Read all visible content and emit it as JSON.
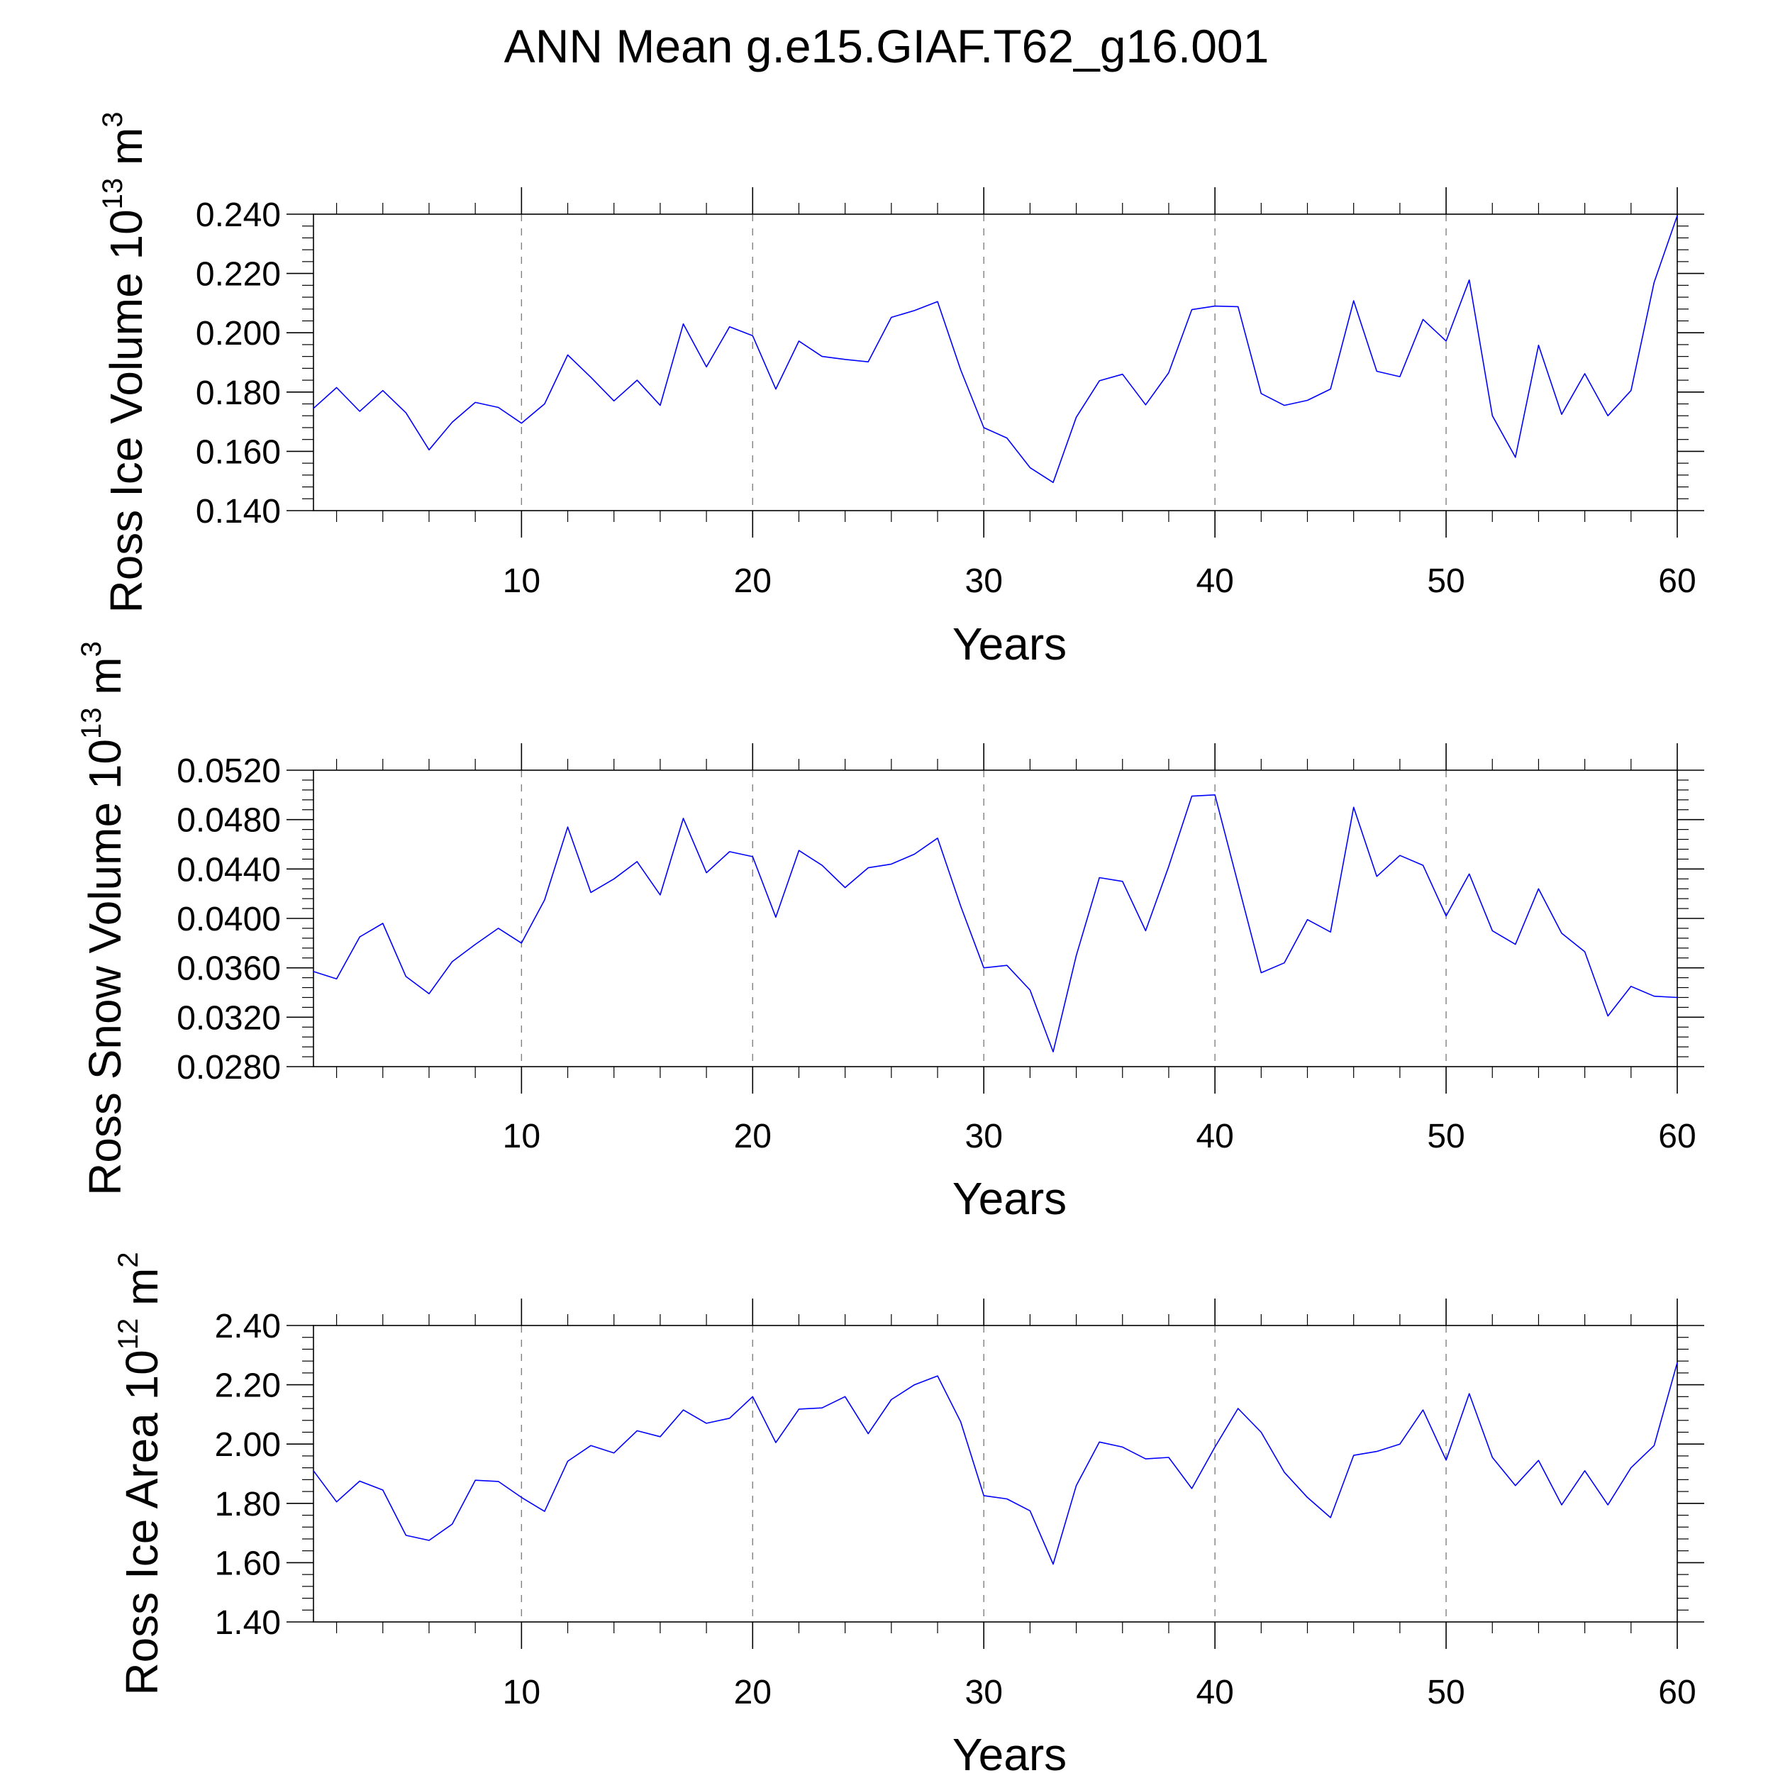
{
  "title": "ANN Mean g.e15.GIAF.T62_g16.001",
  "chart_data": [
    {
      "type": "line",
      "ylabel": {
        "text": "Ross Ice Volume 10",
        "exp": "13",
        "unit": "m",
        "unit_exp": "3"
      },
      "xlabel": "Years",
      "xlim": [
        1,
        60
      ],
      "ylim": [
        0.14,
        0.24
      ],
      "xticks": [
        10,
        20,
        30,
        40,
        50,
        60
      ],
      "yticks": [
        "0.140",
        "0.160",
        "0.180",
        "0.200",
        "0.220",
        "0.240"
      ],
      "yticks_values": [
        0.14,
        0.16,
        0.18,
        0.2,
        0.22,
        0.24
      ],
      "ygrid": false,
      "xgrid_dashed": [
        10,
        20,
        30,
        40,
        50
      ],
      "series": [
        {
          "color": "#0000ff",
          "x": [
            1,
            2,
            3,
            4,
            5,
            6,
            7,
            8,
            9,
            10,
            11,
            12,
            13,
            14,
            15,
            16,
            17,
            18,
            19,
            20,
            21,
            22,
            23,
            24,
            25,
            26,
            27,
            28,
            29,
            30,
            31,
            32,
            33,
            34,
            35,
            36,
            37,
            38,
            39,
            40,
            41,
            42,
            43,
            44,
            45,
            46,
            47,
            48,
            49,
            50,
            51,
            52,
            53,
            54,
            55,
            56,
            57,
            58,
            59,
            60
          ],
          "values": [
            0.1745,
            0.1815,
            0.1735,
            0.1805,
            0.173,
            0.1605,
            0.1698,
            0.1765,
            0.1748,
            0.1695,
            0.176,
            0.1925,
            0.185,
            0.177,
            0.184,
            0.1755,
            0.203,
            0.1885,
            0.202,
            0.199,
            0.181,
            0.1972,
            0.192,
            0.191,
            0.1902,
            0.2052,
            0.2075,
            0.2105,
            0.1875,
            0.168,
            0.1645,
            0.1545,
            0.1495,
            0.1715,
            0.1838,
            0.186,
            0.1757,
            0.1865,
            0.2078,
            0.209,
            0.2088,
            0.1795,
            0.1755,
            0.1772,
            0.181,
            0.2108,
            0.187,
            0.1852,
            0.2045,
            0.1972,
            0.2178,
            0.172,
            0.158,
            0.1958,
            0.1725,
            0.1862,
            0.172,
            0.1805,
            0.217,
            0.2395
          ]
        }
      ]
    },
    {
      "type": "line",
      "ylabel": {
        "text": "Ross Snow Volume 10",
        "exp": "13",
        "unit": "m",
        "unit_exp": "3"
      },
      "xlabel": "Years",
      "xlim": [
        1,
        60
      ],
      "ylim": [
        0.028,
        0.052
      ],
      "xticks": [
        10,
        20,
        30,
        40,
        50,
        60
      ],
      "yticks": [
        "0.0280",
        "0.0320",
        "0.0360",
        "0.0400",
        "0.0440",
        "0.0480",
        "0.0520"
      ],
      "yticks_values": [
        0.028,
        0.032,
        0.036,
        0.04,
        0.044,
        0.048,
        0.052
      ],
      "ygrid": false,
      "xgrid_dashed": [
        10,
        20,
        30,
        40,
        50
      ],
      "series": [
        {
          "color": "#0000ff",
          "x": [
            1,
            2,
            3,
            4,
            5,
            6,
            7,
            8,
            9,
            10,
            11,
            12,
            13,
            14,
            15,
            16,
            17,
            18,
            19,
            20,
            21,
            22,
            23,
            24,
            25,
            26,
            27,
            28,
            29,
            30,
            31,
            32,
            33,
            34,
            35,
            36,
            37,
            38,
            39,
            40,
            41,
            42,
            43,
            44,
            45,
            46,
            47,
            48,
            49,
            50,
            51,
            52,
            53,
            54,
            55,
            56,
            57,
            58,
            59,
            60
          ],
          "values": [
            0.0357,
            0.0351,
            0.0385,
            0.0396,
            0.0353,
            0.0339,
            0.0365,
            0.0379,
            0.0392,
            0.038,
            0.0415,
            0.0474,
            0.0421,
            0.0432,
            0.0446,
            0.0419,
            0.0481,
            0.0437,
            0.0454,
            0.045,
            0.0401,
            0.0455,
            0.0443,
            0.0425,
            0.0441,
            0.0444,
            0.0452,
            0.0465,
            0.041,
            0.036,
            0.0362,
            0.0342,
            0.0292,
            0.037,
            0.0433,
            0.043,
            0.039,
            0.0442,
            0.0499,
            0.05,
            0.0428,
            0.0356,
            0.0364,
            0.0399,
            0.0389,
            0.049,
            0.0434,
            0.0451,
            0.0443,
            0.0402,
            0.0436,
            0.039,
            0.0379,
            0.0424,
            0.0388,
            0.0373,
            0.0321,
            0.0345,
            0.0337,
            0.0336
          ]
        }
      ]
    },
    {
      "type": "line",
      "ylabel": {
        "text": "Ross Ice Area 10",
        "exp": "12",
        "unit": "m",
        "unit_exp": "2"
      },
      "xlabel": "Years",
      "xlim": [
        1,
        60
      ],
      "ylim": [
        1.4,
        2.4
      ],
      "xticks": [
        10,
        20,
        30,
        40,
        50,
        60
      ],
      "yticks": [
        "1.40",
        "1.60",
        "1.80",
        "2.00",
        "2.20",
        "2.40"
      ],
      "yticks_values": [
        1.4,
        1.6,
        1.8,
        2.0,
        2.2,
        2.4
      ],
      "ygrid": false,
      "xgrid_dashed": [
        10,
        20,
        30,
        40,
        50
      ],
      "series": [
        {
          "color": "#0000ff",
          "x": [
            1,
            2,
            3,
            4,
            5,
            6,
            7,
            8,
            9,
            10,
            11,
            12,
            13,
            14,
            15,
            16,
            17,
            18,
            19,
            20,
            21,
            22,
            23,
            24,
            25,
            26,
            27,
            28,
            29,
            30,
            31,
            32,
            33,
            34,
            35,
            36,
            37,
            38,
            39,
            40,
            41,
            42,
            43,
            44,
            45,
            46,
            47,
            48,
            49,
            50,
            51,
            52,
            53,
            54,
            55,
            56,
            57,
            58,
            59,
            60
          ],
          "values": [
            1.91,
            1.805,
            1.875,
            1.845,
            1.692,
            1.675,
            1.73,
            1.878,
            1.874,
            1.82,
            1.773,
            1.942,
            1.995,
            1.97,
            2.045,
            2.025,
            2.115,
            2.07,
            2.087,
            2.16,
            2.005,
            2.118,
            2.122,
            2.16,
            2.035,
            2.15,
            2.2,
            2.23,
            2.075,
            1.826,
            1.815,
            1.775,
            1.595,
            1.86,
            2.007,
            1.99,
            1.95,
            1.955,
            1.85,
            1.99,
            2.12,
            2.04,
            1.905,
            1.82,
            1.752,
            1.962,
            1.975,
            2.0,
            2.115,
            1.946,
            2.17,
            1.955,
            1.86,
            1.945,
            1.795,
            1.91,
            1.795,
            1.92,
            1.995,
            2.275
          ]
        }
      ]
    }
  ]
}
